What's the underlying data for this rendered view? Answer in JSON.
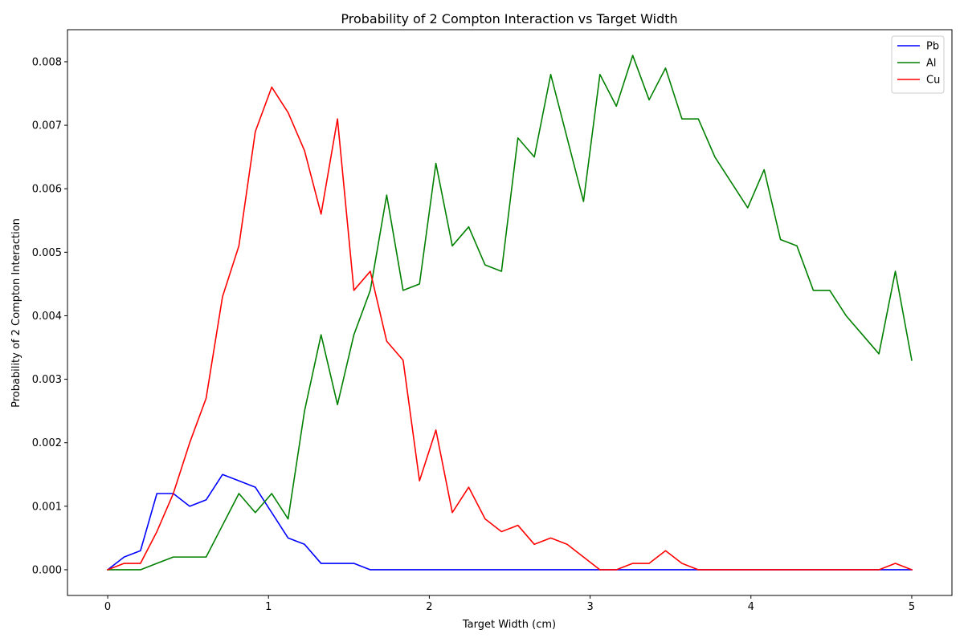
{
  "chart_data": {
    "type": "line",
    "title": "Probability of 2 Compton Interaction vs Target Width",
    "xlabel": "Target Width (cm)",
    "ylabel": "Probability of 2 Compton Interaction",
    "xlim": [
      -0.25,
      5.25
    ],
    "ylim": [
      -0.000405,
      0.008505
    ],
    "xticks": [
      0,
      1,
      2,
      3,
      4,
      5
    ],
    "xtick_labels": [
      "0",
      "1",
      "2",
      "3",
      "4",
      "5"
    ],
    "yticks": [
      0,
      0.001,
      0.002,
      0.003,
      0.004,
      0.005,
      0.006,
      0.007,
      0.008
    ],
    "ytick_labels": [
      "0.000",
      "0.001",
      "0.002",
      "0.003",
      "0.004",
      "0.005",
      "0.006",
      "0.007",
      "0.008"
    ],
    "grid": false,
    "legend_position": "top-right",
    "x": [
      0,
      0.102,
      0.204,
      0.306,
      0.408,
      0.51,
      0.612,
      0.714,
      0.816,
      0.918,
      1.02,
      1.122,
      1.224,
      1.327,
      1.429,
      1.531,
      1.633,
      1.735,
      1.837,
      1.939,
      2.041,
      2.143,
      2.245,
      2.347,
      2.449,
      2.551,
      2.653,
      2.755,
      2.857,
      2.959,
      3.061,
      3.163,
      3.265,
      3.367,
      3.469,
      3.571,
      3.673,
      3.776,
      3.878,
      3.98,
      4.082,
      4.184,
      4.286,
      4.388,
      4.49,
      4.592,
      4.694,
      4.796,
      4.898,
      5.0
    ],
    "series": [
      {
        "name": "Pb",
        "color": "#0000ff",
        "values": [
          0,
          0.0002,
          0.0003,
          0.0012,
          0.0012,
          0.001,
          0.0011,
          0.0015,
          0.0014,
          0.0013,
          0.0009,
          0.0005,
          0.0004,
          0.0001,
          0.0001,
          0.0001,
          0,
          0,
          0,
          0,
          0,
          0,
          0,
          0,
          0,
          0,
          0,
          0,
          0,
          0,
          0,
          0,
          0,
          0,
          0,
          0,
          0,
          0,
          0,
          0,
          0,
          0,
          0,
          0,
          0,
          0,
          0,
          0,
          0,
          0
        ]
      },
      {
        "name": "Al",
        "color": "#008000",
        "values": [
          0,
          0,
          0,
          0.0001,
          0.0002,
          0.0002,
          0.0002,
          0.0007,
          0.0012,
          0.0009,
          0.0012,
          0.0008,
          0.0025,
          0.0037,
          0.0026,
          0.0037,
          0.0044,
          0.0059,
          0.0044,
          0.0045,
          0.0064,
          0.0051,
          0.0054,
          0.0048,
          0.0047,
          0.0068,
          0.0065,
          0.0078,
          0.0068,
          0.0058,
          0.0078,
          0.0073,
          0.0081,
          0.0074,
          0.0079,
          0.0071,
          0.0071,
          0.0065,
          0.0061,
          0.0057,
          0.0063,
          0.0052,
          0.0051,
          0.0044,
          0.0044,
          0.004,
          0.0037,
          0.0034,
          0.0047,
          0.0033
        ]
      },
      {
        "name": "Cu",
        "color": "#ff0000",
        "values": [
          0,
          0.0001,
          0.0001,
          0.0006,
          0.0012,
          0.002,
          0.0027,
          0.0043,
          0.0051,
          0.0069,
          0.0076,
          0.0072,
          0.0066,
          0.0056,
          0.0071,
          0.0044,
          0.0047,
          0.0036,
          0.0033,
          0.0014,
          0.0022,
          0.0009,
          0.0013,
          0.0008,
          0.0006,
          0.0007,
          0.0004,
          0.0005,
          0.0004,
          0.0002,
          0,
          0,
          0.0001,
          0.0001,
          0.0003,
          0.0001,
          0,
          0,
          0,
          0,
          0,
          0,
          0,
          0,
          0,
          0,
          0,
          0,
          0.0001,
          0
        ]
      }
    ]
  }
}
